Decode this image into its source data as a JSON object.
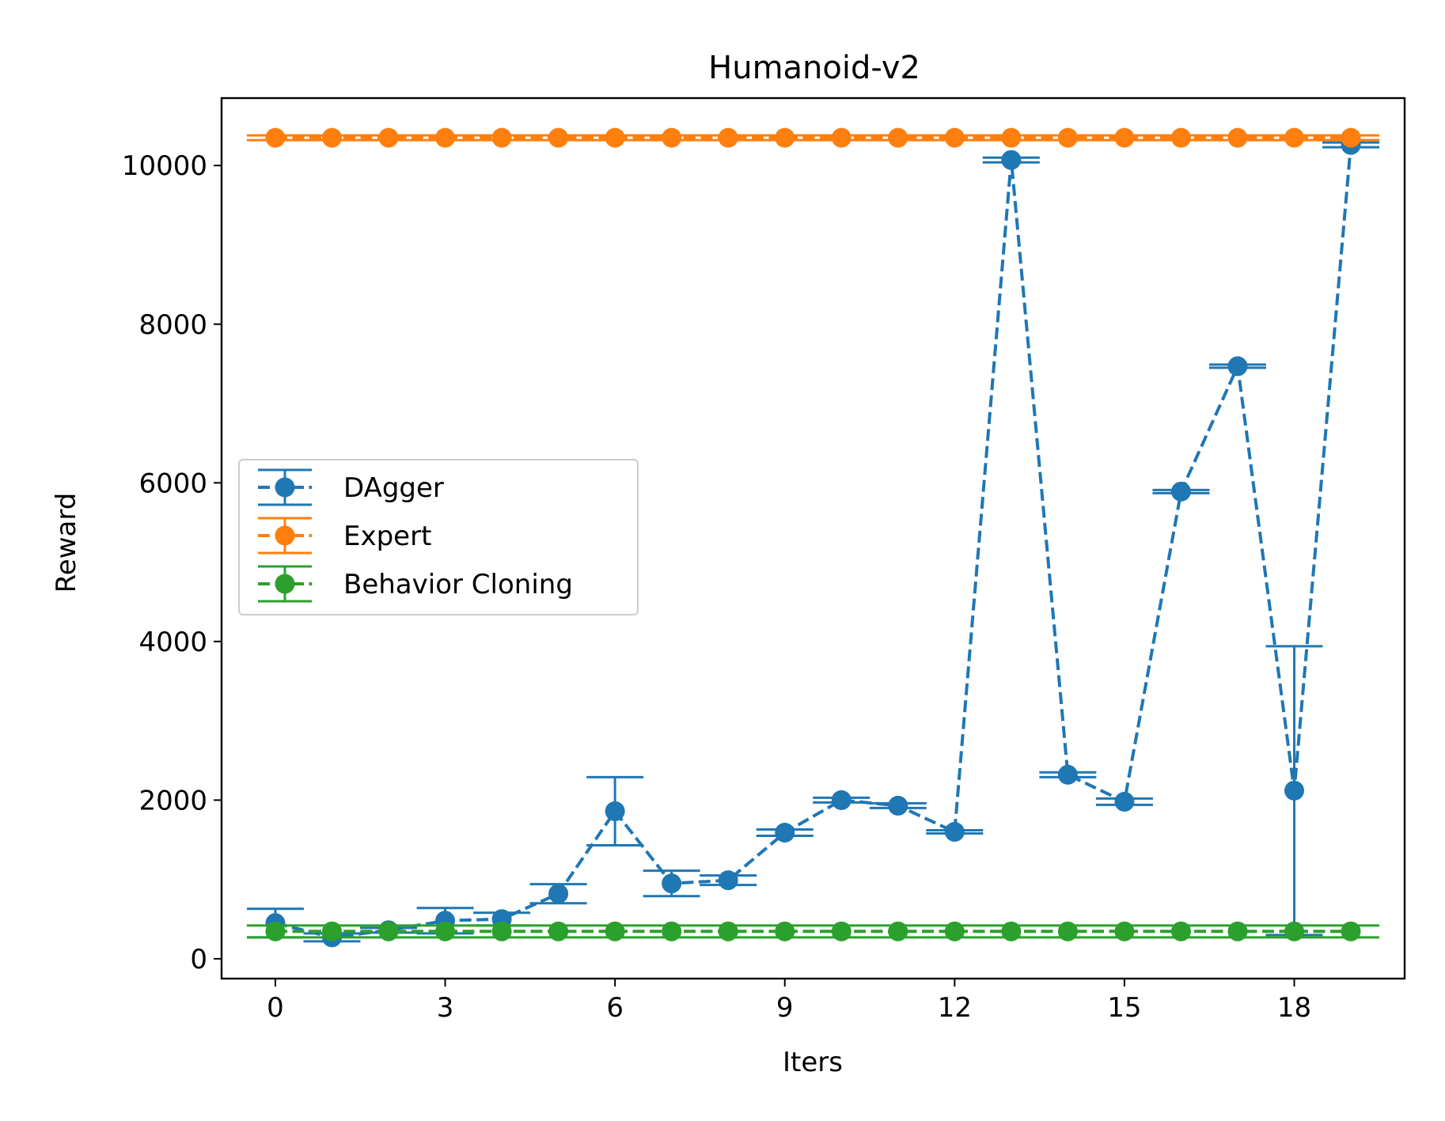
{
  "chart_data": {
    "type": "line",
    "title": "Humanoid-v2",
    "xlabel": "Iters",
    "ylabel": "Reward",
    "xlim": [
      -0.95,
      19.95
    ],
    "ylim": [
      -250,
      10850
    ],
    "xticks": [
      0,
      3,
      6,
      9,
      12,
      15,
      18
    ],
    "yticks": [
      0,
      2000,
      4000,
      6000,
      8000,
      10000
    ],
    "legend_position": "center-left",
    "x": [
      0,
      1,
      2,
      3,
      4,
      5,
      6,
      7,
      8,
      9,
      10,
      11,
      12,
      13,
      14,
      15,
      16,
      17,
      18,
      19
    ],
    "series": [
      {
        "name": "DAgger",
        "color": "#1f77b4",
        "values": [
          450,
          270,
          360,
          480,
          500,
          820,
          1860,
          950,
          990,
          1590,
          2000,
          1930,
          1600,
          10070,
          2320,
          1980,
          5890,
          7470,
          2120,
          10260
        ],
        "errors": [
          180,
          50,
          30,
          160,
          80,
          120,
          430,
          160,
          60,
          40,
          30,
          30,
          20,
          30,
          30,
          40,
          20,
          20,
          1820,
          30
        ]
      },
      {
        "name": "Expert",
        "color": "#ff7f0e",
        "values": [
          10350,
          10350,
          10350,
          10350,
          10350,
          10350,
          10350,
          10350,
          10350,
          10350,
          10350,
          10350,
          10350,
          10350,
          10350,
          10350,
          10350,
          10350,
          10350,
          10350
        ],
        "errors": [
          30,
          30,
          30,
          30,
          30,
          30,
          30,
          30,
          30,
          30,
          30,
          30,
          30,
          30,
          30,
          30,
          30,
          30,
          30,
          30
        ]
      },
      {
        "name": "Behavior Cloning",
        "color": "#2ca02c",
        "values": [
          345,
          345,
          345,
          345,
          345,
          345,
          345,
          345,
          345,
          345,
          345,
          345,
          345,
          345,
          345,
          345,
          345,
          345,
          345,
          345
        ],
        "errors": [
          75,
          75,
          75,
          75,
          75,
          75,
          75,
          75,
          75,
          75,
          75,
          75,
          75,
          75,
          75,
          75,
          75,
          75,
          75,
          75
        ]
      }
    ]
  }
}
